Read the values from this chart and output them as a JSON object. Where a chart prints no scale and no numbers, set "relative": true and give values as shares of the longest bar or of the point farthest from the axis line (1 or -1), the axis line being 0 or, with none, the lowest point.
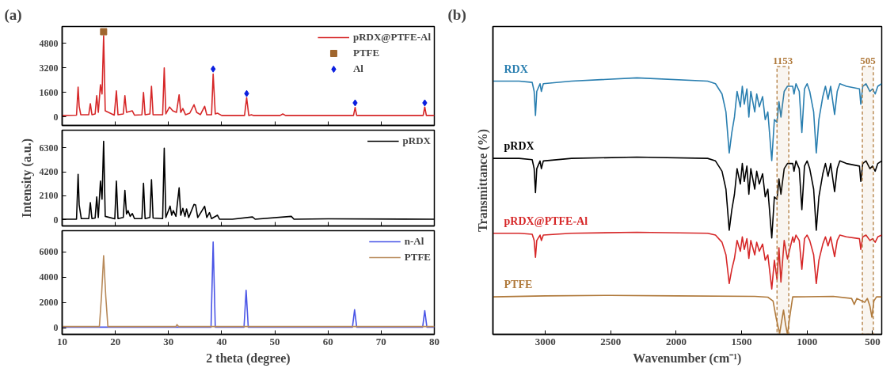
{
  "chart_data": [
    {
      "type": "line",
      "title": "(a)",
      "xlim": [
        10,
        80
      ],
      "xticks": [
        10,
        20,
        30,
        40,
        50,
        60,
        70,
        80
      ],
      "ylim": [
        -550,
        5900
      ],
      "yticks": [
        0,
        1600,
        3200,
        4800
      ],
      "tick_labels": "y",
      "grid": false,
      "legend": "top right",
      "series": [
        {
          "name": "pRDX@PTFE-Al",
          "color": "#d62728",
          "x": [
            10,
            12.7,
            13.0,
            13.2,
            13.5,
            15.0,
            15.3,
            15.6,
            16.2,
            16.5,
            16.8,
            17.2,
            17.5,
            17.8,
            18.1,
            19.8,
            20.2,
            20.5,
            21.5,
            21.8,
            22.1,
            22.6,
            23.2,
            23.6,
            25.0,
            25.3,
            25.6,
            26.5,
            26.8,
            27.1,
            28.9,
            29.2,
            29.5,
            30.2,
            30.8,
            31.5,
            32.0,
            32.3,
            32.7,
            33.2,
            34.0,
            34.8,
            35.3,
            36.0,
            36.8,
            37.2,
            38.1,
            38.4,
            38.8,
            39.2,
            40.0,
            44.3,
            44.7,
            45.1,
            45.6,
            46,
            51,
            51.5,
            52,
            64.8,
            65.1,
            65.4,
            77.9,
            78.2,
            78.5,
            80
          ],
          "values": [
            100,
            120,
            1950,
            700,
            150,
            150,
            870,
            150,
            200,
            1400,
            300,
            2100,
            1500,
            5300,
            400,
            120,
            1700,
            150,
            200,
            1400,
            300,
            350,
            400,
            120,
            150,
            1600,
            150,
            200,
            2000,
            150,
            150,
            3200,
            200,
            650,
            400,
            300,
            1450,
            300,
            550,
            150,
            250,
            800,
            300,
            150,
            700,
            150,
            150,
            2800,
            200,
            250,
            100,
            100,
            1250,
            100,
            150,
            100,
            100,
            200,
            100,
            100,
            620,
            100,
            100,
            650,
            100,
            100
          ]
        },
        {
          "name": "PTFE",
          "type": "scatter",
          "marker": "square",
          "color": "#a0662e",
          "x": [
            17.8
          ],
          "values": [
            5560
          ]
        },
        {
          "name": "Al",
          "type": "scatter",
          "marker": "diamond",
          "color": "#0a1ee0",
          "x": [
            38.4,
            44.7,
            65.1,
            78.2
          ],
          "values": [
            3130,
            1530,
            920,
            920
          ]
        }
      ]
    },
    {
      "type": "line",
      "ylabel": "Intensity (a.u.)",
      "xlim": [
        10,
        80
      ],
      "xticks": [
        10,
        20,
        30,
        40,
        50,
        60,
        70,
        80
      ],
      "ylim": [
        -540,
        7850
      ],
      "yticks": [
        0,
        2100,
        4200,
        6300
      ],
      "tick_labels": "y",
      "grid": false,
      "legend": "top right",
      "series": [
        {
          "name": "pRDX",
          "color": "#000000",
          "x": [
            10,
            12.7,
            13.0,
            13.2,
            13.6,
            15.0,
            15.3,
            15.6,
            16.2,
            16.5,
            16.8,
            17.2,
            17.5,
            17.8,
            18.1,
            19.9,
            20.2,
            20.5,
            21.5,
            21.8,
            22.1,
            22.4,
            22.8,
            23.2,
            23.6,
            25.0,
            25.3,
            25.6,
            26.5,
            26.8,
            27.1,
            28.9,
            29.2,
            29.5,
            30.3,
            30.6,
            30.9,
            31.4,
            32.0,
            32.3,
            32.7,
            33.1,
            33.4,
            33.8,
            34.8,
            35.1,
            35.5,
            36.8,
            37.2,
            37.7,
            38.1,
            39.2,
            39.6,
            42,
            45.8,
            46.3,
            53.1,
            53.6,
            60,
            80
          ],
          "values": [
            50,
            60,
            3980,
            1300,
            100,
            100,
            1500,
            100,
            150,
            2000,
            200,
            3400,
            1800,
            6870,
            300,
            80,
            3400,
            100,
            200,
            2580,
            500,
            800,
            300,
            550,
            100,
            100,
            3200,
            100,
            200,
            3520,
            150,
            100,
            6270,
            200,
            1200,
            400,
            800,
            300,
            2800,
            400,
            1000,
            300,
            950,
            200,
            1350,
            1300,
            200,
            1180,
            200,
            630,
            100,
            400,
            50,
            50,
            250,
            50,
            300,
            50,
            80,
            50
          ]
        }
      ]
    },
    {
      "type": "line",
      "xlabel": "2 theta (degree)",
      "xlim": [
        10,
        80
      ],
      "xticks": [
        10,
        20,
        30,
        40,
        50,
        60,
        70,
        80
      ],
      "ylim": [
        -520,
        7680
      ],
      "yticks": [
        0,
        2000,
        4000,
        6000
      ],
      "grid": false,
      "legend": "top right",
      "series": [
        {
          "name": "n-Al",
          "color": "#4a55e6",
          "x": [
            10,
            38.0,
            38.4,
            38.8,
            44.2,
            44.6,
            45.0,
            64.6,
            65.0,
            65.4,
            77.8,
            78.2,
            78.6,
            80
          ],
          "values": [
            50,
            50,
            6790,
            50,
            50,
            2960,
            50,
            50,
            1430,
            50,
            50,
            1360,
            50,
            50
          ]
        },
        {
          "name": "PTFE",
          "color": "#b88a5a",
          "x": [
            10,
            17.0,
            17.4,
            17.8,
            18.2,
            18.6,
            31.4,
            31.6,
            31.9,
            80
          ],
          "values": [
            100,
            100,
            2500,
            5700,
            2500,
            100,
            100,
            250,
            100,
            100
          ]
        }
      ]
    },
    {
      "type": "line",
      "title": "(b)",
      "xlabel": "Wavenumber (cm⁻¹)",
      "ylabel": "Transmittance (%)",
      "relative": true,
      "xlim": [
        3400,
        430
      ],
      "xticks": [
        3000,
        2500,
        2000,
        1500,
        1000,
        500
      ],
      "tick_labels": "x",
      "grid": false,
      "x": [
        3400,
        3200,
        3100,
        3085,
        3075,
        3065,
        3040,
        3030,
        3015,
        2800,
        2300,
        1760,
        1700,
        1650,
        1620,
        1595,
        1575,
        1555,
        1535,
        1510,
        1495,
        1480,
        1460,
        1445,
        1430,
        1400,
        1385,
        1365,
        1340,
        1320,
        1300,
        1270,
        1250,
        1230,
        1215,
        1200,
        1175,
        1150,
        1110,
        1100,
        1085,
        1060,
        1040,
        1020,
        1000,
        980,
        950,
        930,
        910,
        880,
        860,
        840,
        820,
        790,
        770,
        750,
        700,
        600,
        590,
        575,
        550,
        520,
        500,
        480,
        460,
        430
      ],
      "series": [
        {
          "name": "RDX",
          "color": "#2a7fb0",
          "values": [
            0.987,
            0.987,
            0.982,
            0.947,
            0.853,
            0.947,
            0.977,
            0.947,
            0.977,
            0.987,
            1.0,
            0.987,
            0.977,
            0.937,
            0.867,
            0.707,
            0.787,
            0.847,
            0.947,
            0.887,
            0.967,
            0.897,
            0.957,
            0.847,
            0.947,
            0.867,
            0.937,
            0.887,
            0.927,
            0.837,
            0.867,
            0.677,
            0.837,
            0.827,
            0.907,
            0.847,
            0.947,
            0.967,
            0.967,
            0.937,
            0.977,
            0.947,
            0.787,
            0.957,
            0.977,
            0.947,
            0.867,
            0.707,
            0.837,
            0.927,
            0.967,
            0.917,
            0.967,
            0.857,
            0.947,
            0.977,
            0.967,
            0.957,
            0.897,
            0.967,
            0.977,
            0.947,
            0.957,
            0.937,
            0.967,
            0.977
          ]
        },
        {
          "name": "pRDX",
          "color": "#000000",
          "values": [
            0.686,
            0.686,
            0.681,
            0.646,
            0.552,
            0.646,
            0.676,
            0.646,
            0.676,
            0.686,
            0.691,
            0.686,
            0.676,
            0.636,
            0.566,
            0.406,
            0.486,
            0.546,
            0.646,
            0.586,
            0.666,
            0.596,
            0.656,
            0.546,
            0.646,
            0.566,
            0.636,
            0.586,
            0.626,
            0.536,
            0.566,
            0.376,
            0.536,
            0.526,
            0.606,
            0.546,
            0.646,
            0.666,
            0.666,
            0.636,
            0.676,
            0.646,
            0.486,
            0.656,
            0.676,
            0.646,
            0.566,
            0.406,
            0.536,
            0.626,
            0.666,
            0.616,
            0.666,
            0.556,
            0.646,
            0.676,
            0.666,
            0.656,
            0.596,
            0.666,
            0.676,
            0.646,
            0.656,
            0.636,
            0.666,
            0.676
          ]
        },
        {
          "name": "pRDX@PTFE-Al",
          "color": "#d62728",
          "values": [
            0.394,
            0.394,
            0.39,
            0.366,
            0.3,
            0.366,
            0.387,
            0.366,
            0.387,
            0.394,
            0.398,
            0.394,
            0.387,
            0.359,
            0.31,
            0.198,
            0.254,
            0.296,
            0.366,
            0.324,
            0.38,
            0.331,
            0.373,
            0.296,
            0.366,
            0.31,
            0.359,
            0.324,
            0.352,
            0.289,
            0.31,
            0.177,
            0.289,
            0.214,
            0.338,
            0.204,
            0.366,
            0.294,
            0.38,
            0.359,
            0.387,
            0.366,
            0.254,
            0.373,
            0.387,
            0.366,
            0.31,
            0.198,
            0.289,
            0.352,
            0.38,
            0.345,
            0.38,
            0.303,
            0.366,
            0.387,
            0.38,
            0.373,
            0.331,
            0.38,
            0.387,
            0.366,
            0.373,
            0.359,
            0.38,
            0.387
          ]
        },
        {
          "name": "PTFE",
          "color": "#b07a3c",
          "x": [
            3400,
            3000,
            2500,
            2000,
            1400,
            1300,
            1260,
            1235,
            1210,
            1195,
            1180,
            1165,
            1150,
            1135,
            1110,
            800,
            660,
            640,
            620,
            560,
            540,
            520,
            505,
            490,
            470,
            430
          ],
          "values": [
            0.146,
            0.15,
            0.152,
            0.15,
            0.148,
            0.145,
            0.13,
            0.06,
            0.003,
            0.05,
            0.095,
            0.04,
            0,
            0.06,
            0.146,
            0.148,
            0.14,
            0.117,
            0.14,
            0.125,
            0.14,
            0.11,
            0.067,
            0.13,
            0.146,
            0.146
          ]
        }
      ],
      "bands": [
        {
          "axis": "x",
          "from": 1230,
          "to": 1140,
          "label": "1153",
          "color": "#b07a3c"
        },
        {
          "axis": "x",
          "from": 578,
          "to": 494,
          "label": "505",
          "color": "#b07a3c"
        }
      ]
    }
  ]
}
